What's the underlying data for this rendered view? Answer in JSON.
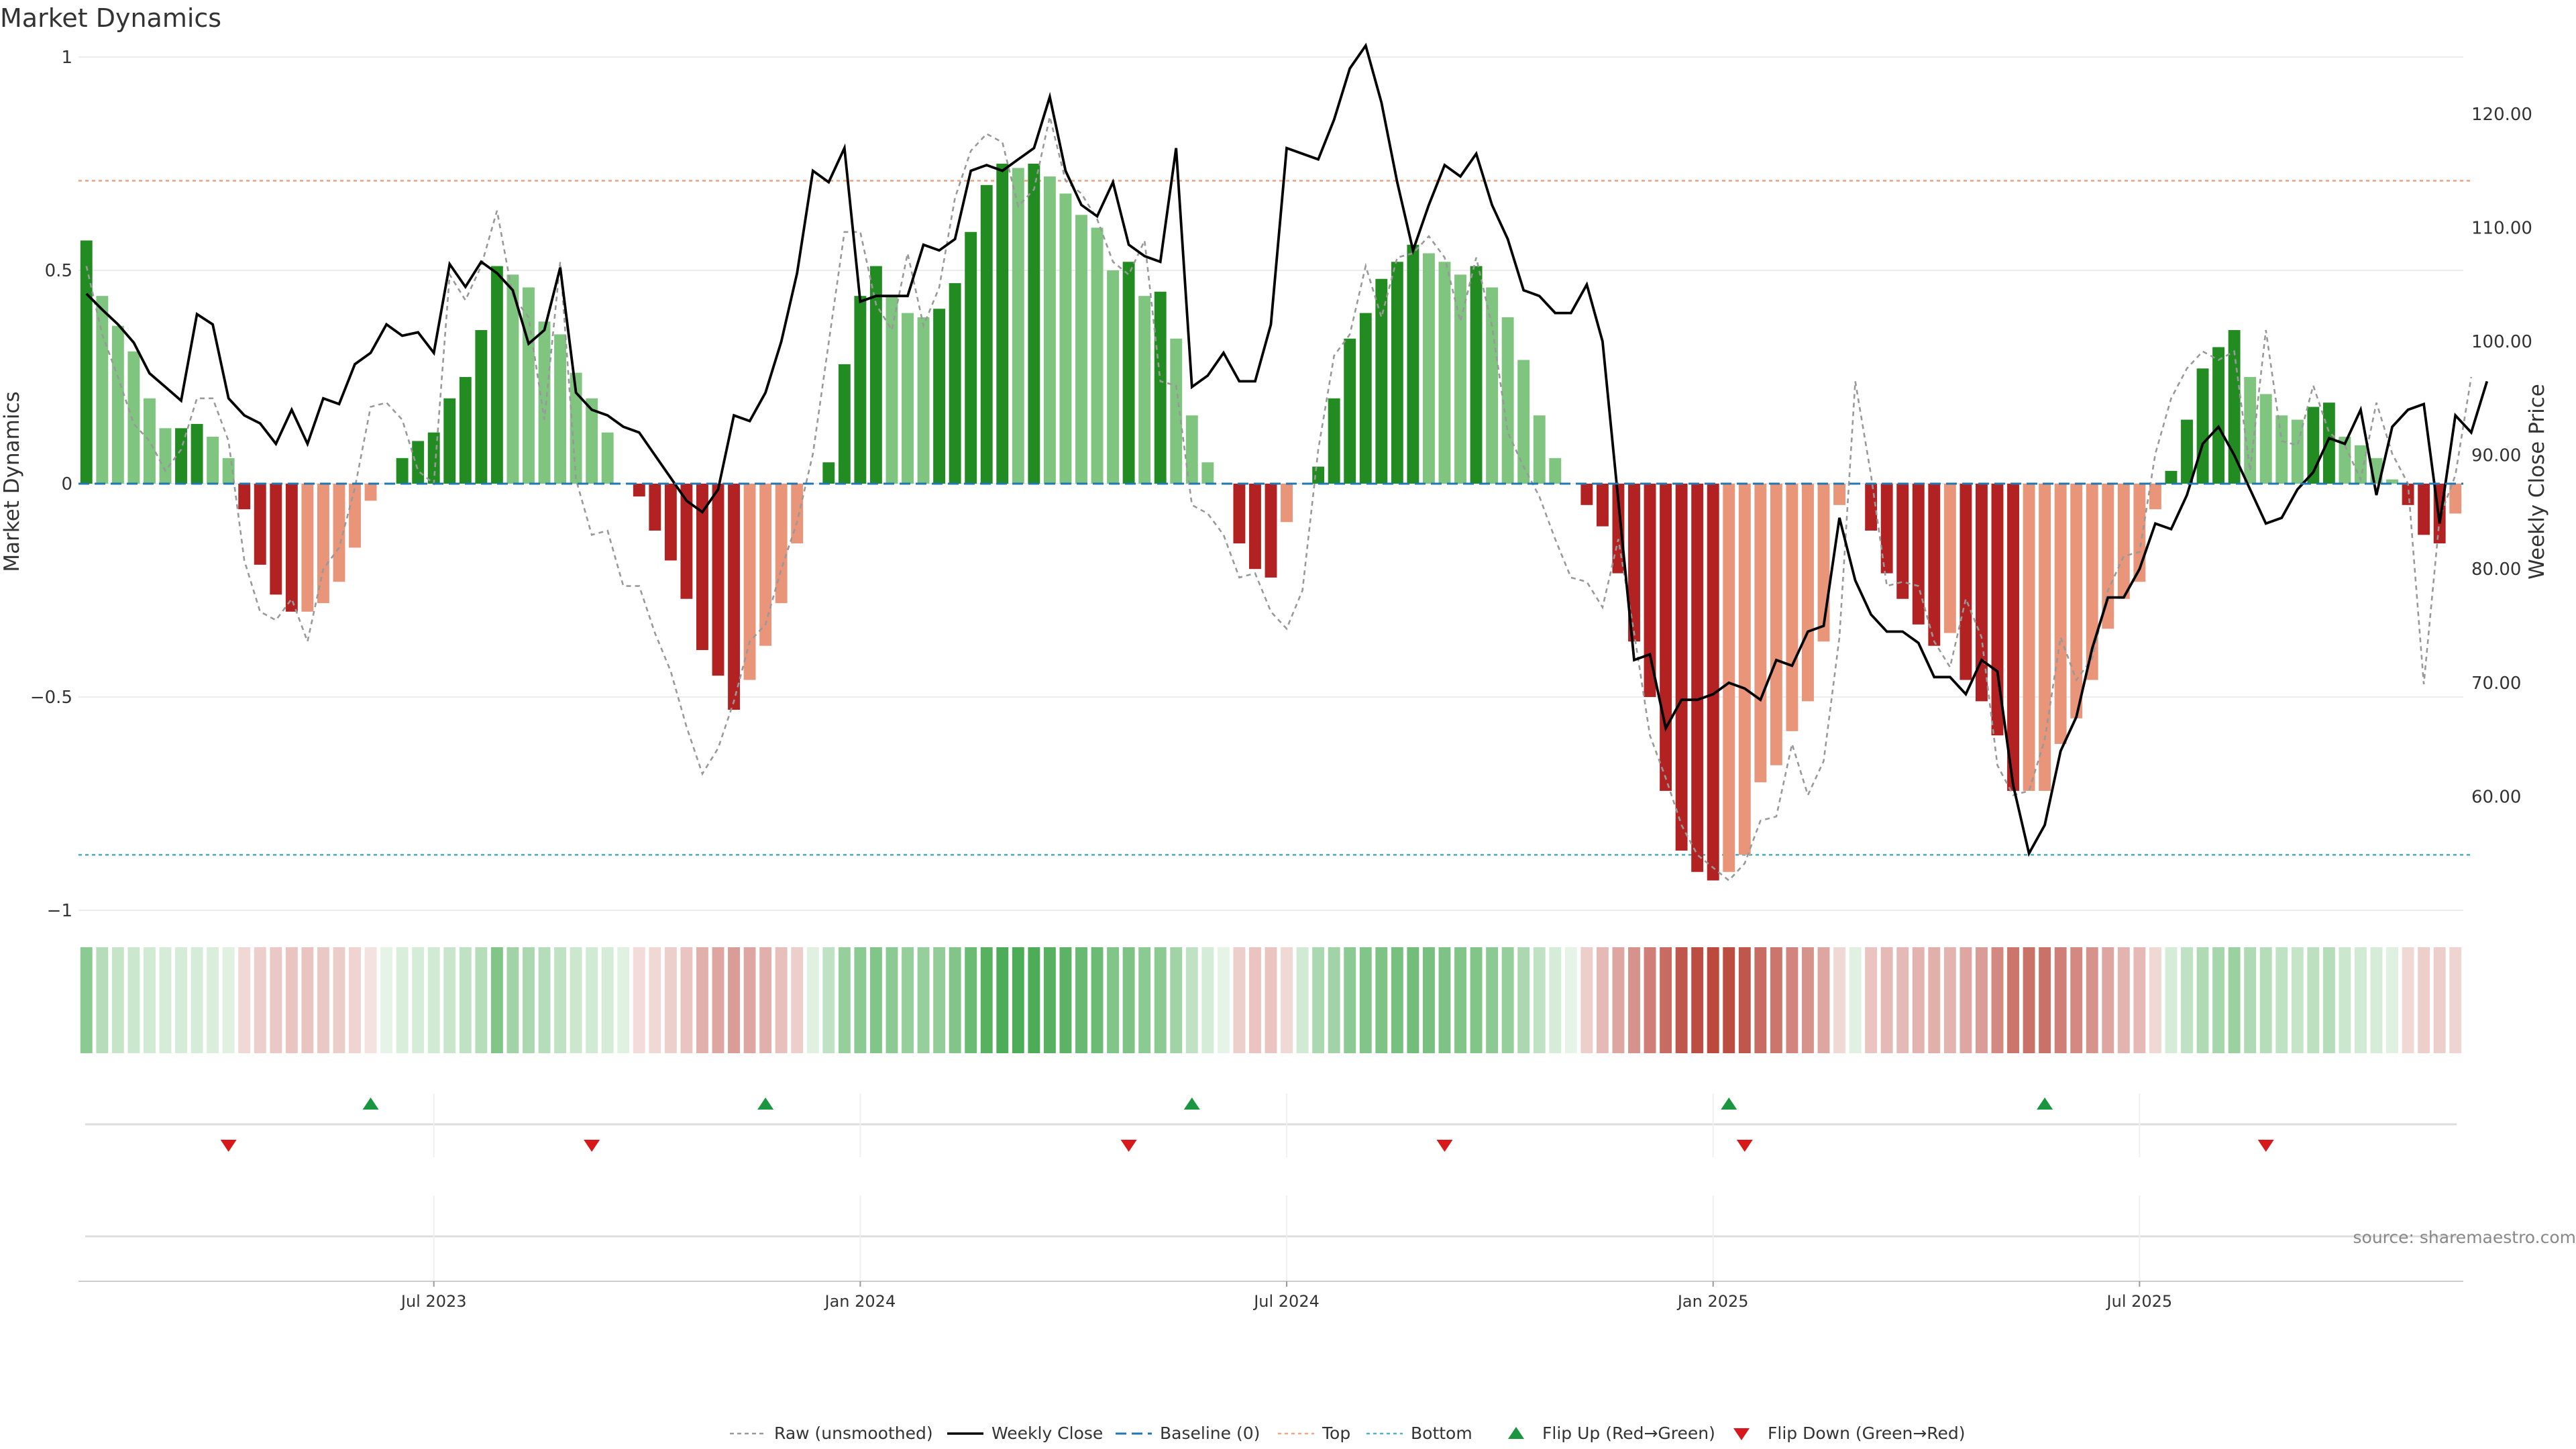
{
  "chart_data": {
    "type": "bar",
    "title": "Market Dynamics",
    "ylabel_left": "Market Dynamics",
    "ylabel_right": "Weekly Close Price",
    "ylim_left": [
      -1.0,
      1.0
    ],
    "ylim_right": [
      50.0,
      125.0
    ],
    "left_ticks": [
      "1",
      "0.5",
      "0",
      "−0.5",
      "−1"
    ],
    "left_tick_values": [
      1,
      0.5,
      0,
      -0.5,
      -1
    ],
    "right_ticks": [
      "120.00",
      "110.00",
      "100.00",
      "90.00",
      "80.00",
      "70.00",
      "60.00"
    ],
    "right_tick_values": [
      120,
      110,
      100,
      90,
      80,
      70,
      60
    ],
    "x_ticks": [
      "Jul 2023",
      "Jan 2024",
      "Jul 2024",
      "Jan 2025",
      "Jul 2025"
    ],
    "x_tick_week_index": [
      22,
      49,
      76,
      103,
      130
    ],
    "start_week": "2023-02-06",
    "reference_lines": {
      "baseline": 0,
      "top": 0.71,
      "bottom": -0.87
    },
    "smoothed": [
      0.57,
      0.44,
      0.37,
      0.31,
      0.2,
      0.13,
      0.13,
      0.14,
      0.11,
      0.06,
      -0.06,
      -0.19,
      -0.26,
      -0.3,
      -0.3,
      -0.28,
      -0.23,
      -0.15,
      -0.04,
      0.0,
      0.06,
      0.1,
      0.12,
      0.2,
      0.25,
      0.36,
      0.51,
      0.49,
      0.46,
      0.38,
      0.35,
      0.26,
      0.2,
      0.12,
      0.0,
      -0.03,
      -0.11,
      -0.18,
      -0.27,
      -0.39,
      -0.45,
      -0.53,
      -0.46,
      -0.38,
      -0.28,
      -0.14,
      0.0,
      0.05,
      0.28,
      0.44,
      0.51,
      0.44,
      0.4,
      0.39,
      0.41,
      0.47,
      0.59,
      0.7,
      0.75,
      0.74,
      0.75,
      0.72,
      0.68,
      0.63,
      0.6,
      0.5,
      0.52,
      0.44,
      0.45,
      0.34,
      0.16,
      0.05,
      0.0,
      -0.14,
      -0.2,
      -0.22,
      -0.09,
      0.0,
      0.04,
      0.2,
      0.34,
      0.4,
      0.48,
      0.52,
      0.56,
      0.54,
      0.52,
      0.49,
      0.51,
      0.46,
      0.39,
      0.29,
      0.16,
      0.06,
      0.0,
      -0.05,
      -0.1,
      -0.21,
      -0.37,
      -0.5,
      -0.72,
      -0.86,
      -0.91,
      -0.93,
      -0.91,
      -0.87,
      -0.7,
      -0.66,
      -0.58,
      -0.51,
      -0.37,
      -0.05,
      0.0,
      -0.11,
      -0.21,
      -0.27,
      -0.33,
      -0.38,
      -0.35,
      -0.46,
      -0.51,
      -0.59,
      -0.72,
      -0.72,
      -0.72,
      -0.61,
      -0.55,
      -0.46,
      -0.34,
      -0.27,
      -0.23,
      -0.06,
      0.03,
      0.15,
      0.27,
      0.32,
      0.36,
      0.25,
      0.21,
      0.16,
      0.15,
      0.18,
      0.19,
      0.11,
      0.09,
      0.06,
      0.01,
      -0.05,
      -0.12,
      -0.14,
      -0.07
    ],
    "raw": [
      0.51,
      0.35,
      0.25,
      0.14,
      0.1,
      0.03,
      0.08,
      0.2,
      0.2,
      0.1,
      -0.18,
      -0.3,
      -0.32,
      -0.27,
      -0.37,
      -0.2,
      -0.15,
      -0.01,
      0.18,
      0.19,
      0.15,
      0.03,
      0.0,
      0.49,
      0.43,
      0.51,
      0.64,
      0.44,
      0.39,
      0.15,
      0.52,
      0.01,
      -0.12,
      -0.11,
      -0.24,
      -0.24,
      -0.35,
      -0.44,
      -0.57,
      -0.68,
      -0.62,
      -0.51,
      -0.37,
      -0.33,
      -0.2,
      -0.09,
      0.07,
      0.33,
      0.59,
      0.59,
      0.42,
      0.36,
      0.54,
      0.37,
      0.46,
      0.67,
      0.78,
      0.82,
      0.8,
      0.65,
      0.69,
      0.86,
      0.71,
      0.68,
      0.62,
      0.52,
      0.49,
      0.57,
      0.24,
      0.23,
      -0.05,
      -0.07,
      -0.12,
      -0.22,
      -0.21,
      -0.3,
      -0.34,
      -0.25,
      0.08,
      0.3,
      0.35,
      0.51,
      0.39,
      0.53,
      0.54,
      0.58,
      0.53,
      0.38,
      0.53,
      0.37,
      0.12,
      0.04,
      -0.03,
      -0.13,
      -0.22,
      -0.23,
      -0.29,
      -0.13,
      -0.35,
      -0.59,
      -0.69,
      -0.8,
      -0.87,
      -0.9,
      -0.93,
      -0.89,
      -0.79,
      -0.78,
      -0.61,
      -0.73,
      -0.65,
      -0.36,
      0.24,
      0.02,
      -0.24,
      -0.23,
      -0.24,
      -0.37,
      -0.43,
      -0.27,
      -0.36,
      -0.66,
      -0.73,
      -0.72,
      -0.6,
      -0.36,
      -0.46,
      -0.41,
      -0.25,
      -0.17,
      -0.16,
      0.07,
      0.2,
      0.27,
      0.31,
      0.29,
      0.31,
      0.03,
      0.36,
      0.1,
      0.09,
      0.23,
      0.12,
      0.09,
      0.01,
      0.19,
      0.07,
      0.0,
      -0.47,
      -0.08,
      0.02,
      0.25
    ],
    "weekly_close": [
      104.2,
      102.8,
      101.5,
      99.9,
      97.2,
      96.0,
      94.8,
      102.4,
      101.5,
      95.0,
      93.5,
      92.8,
      91.0,
      94.0,
      91.0,
      95.0,
      94.5,
      98.0,
      99.0,
      101.5,
      100.5,
      100.8,
      99.0,
      106.8,
      104.8,
      107.0,
      106.0,
      104.5,
      99.8,
      101.0,
      106.5,
      95.5,
      94.0,
      93.5,
      92.5,
      92.0,
      90.0,
      88.0,
      86.0,
      85.0,
      87.0,
      93.5,
      93.0,
      95.5,
      100.0,
      106.0,
      115.0,
      114.0,
      117.0,
      103.5,
      104.0,
      104.0,
      104.0,
      108.5,
      108.0,
      109.0,
      115.0,
      115.5,
      115.0,
      116.0,
      117.0,
      121.5,
      115.0,
      112.0,
      111.0,
      114.0,
      108.5,
      107.5,
      107.0,
      117.0,
      96.0,
      97.0,
      99.0,
      96.5,
      96.5,
      101.5,
      117.0,
      116.5,
      116.0,
      119.5,
      124.0,
      126.0,
      121.0,
      114.0,
      108.0,
      112.0,
      115.5,
      114.5,
      116.5,
      112.0,
      109.0,
      104.5,
      104.0,
      102.5,
      102.5,
      105.0,
      100.0,
      86.0,
      72.0,
      72.5,
      66.0,
      68.5,
      68.5,
      69.0,
      70.0,
      69.5,
      68.5,
      72.0,
      71.5,
      74.5,
      75.0,
      84.5,
      79.0,
      76.0,
      74.5,
      74.5,
      73.5,
      70.5,
      70.5,
      69.0,
      72.0,
      71.0,
      61.0,
      55.0,
      57.5,
      64.0,
      67.0,
      73.0,
      77.5,
      77.5,
      80.0,
      84.0,
      83.5,
      86.5,
      91.0,
      92.5,
      90.0,
      87.0,
      84.0,
      84.5,
      87.0,
      88.5,
      91.5,
      91.0,
      94.0,
      86.5,
      92.5,
      94.0,
      94.5,
      84.0,
      93.5,
      92.0,
      96.5
    ],
    "top_strip_intensity": [
      0.55,
      0.35,
      0.28,
      0.25,
      0.22,
      0.2,
      0.2,
      0.2,
      0.18,
      0.15,
      0.2,
      0.25,
      0.28,
      0.3,
      0.3,
      0.28,
      0.26,
      0.22,
      0.15,
      0.12,
      0.18,
      0.2,
      0.22,
      0.26,
      0.3,
      0.35,
      0.6,
      0.45,
      0.4,
      0.35,
      0.3,
      0.25,
      0.22,
      0.2,
      0.15,
      0.18,
      0.2,
      0.25,
      0.3,
      0.4,
      0.45,
      0.5,
      0.45,
      0.4,
      0.32,
      0.25,
      0.15,
      0.3,
      0.5,
      0.55,
      0.6,
      0.55,
      0.5,
      0.5,
      0.52,
      0.6,
      0.7,
      0.8,
      0.85,
      0.85,
      0.85,
      0.8,
      0.78,
      0.72,
      0.7,
      0.6,
      0.62,
      0.55,
      0.55,
      0.45,
      0.3,
      0.2,
      0.1,
      0.25,
      0.3,
      0.3,
      0.2,
      0.22,
      0.4,
      0.45,
      0.55,
      0.6,
      0.62,
      0.65,
      0.68,
      0.65,
      0.62,
      0.6,
      0.6,
      0.55,
      0.5,
      0.4,
      0.3,
      0.2,
      0.1,
      0.25,
      0.35,
      0.45,
      0.55,
      0.65,
      0.75,
      0.85,
      0.9,
      0.92,
      0.9,
      0.85,
      0.75,
      0.7,
      0.62,
      0.55,
      0.45,
      0.2,
      0.15,
      0.3,
      0.35,
      0.35,
      0.38,
      0.4,
      0.38,
      0.45,
      0.5,
      0.6,
      0.7,
      0.72,
      0.72,
      0.65,
      0.6,
      0.55,
      0.45,
      0.38,
      0.35,
      0.2,
      0.2,
      0.3,
      0.38,
      0.42,
      0.48,
      0.38,
      0.35,
      0.3,
      0.28,
      0.32,
      0.35,
      0.25,
      0.22,
      0.2,
      0.15,
      0.2,
      0.25,
      0.25,
      0.22
    ],
    "flip_up_week_index": [
      18,
      43,
      70,
      104,
      124
    ],
    "flip_down_week_index": [
      9,
      32,
      66,
      86,
      105,
      138
    ],
    "colors": {
      "pos_strong": "#228b22",
      "pos_light": "#7fc47f",
      "neg_strong": "#b22222",
      "neg_light": "#e8957a",
      "close_line": "#000000",
      "raw_line": "#999999",
      "baseline": "#1f77b4",
      "top_line": "#f4a582",
      "bottom_line": "#4fb3c8",
      "flip_up": "#1a9641",
      "flip_down": "#d7191c"
    },
    "legend": [
      {
        "label": "Raw (unsmoothed)",
        "icon": "dotted-gray-line-icon"
      },
      {
        "label": "Weekly Close",
        "icon": "solid-black-line-icon"
      },
      {
        "label": "Baseline (0)",
        "icon": "dashed-blue-line-icon"
      },
      {
        "label": "Top",
        "icon": "dotted-orange-line-icon"
      },
      {
        "label": "Bottom",
        "icon": "dotted-cyan-line-icon"
      },
      {
        "label": "Flip Up (Red→Green)",
        "icon": "green-up-triangle-icon"
      },
      {
        "label": "Flip Down (Green→Red)",
        "icon": "red-down-triangle-icon"
      }
    ],
    "source_note": "source: sharemaestro.com"
  }
}
